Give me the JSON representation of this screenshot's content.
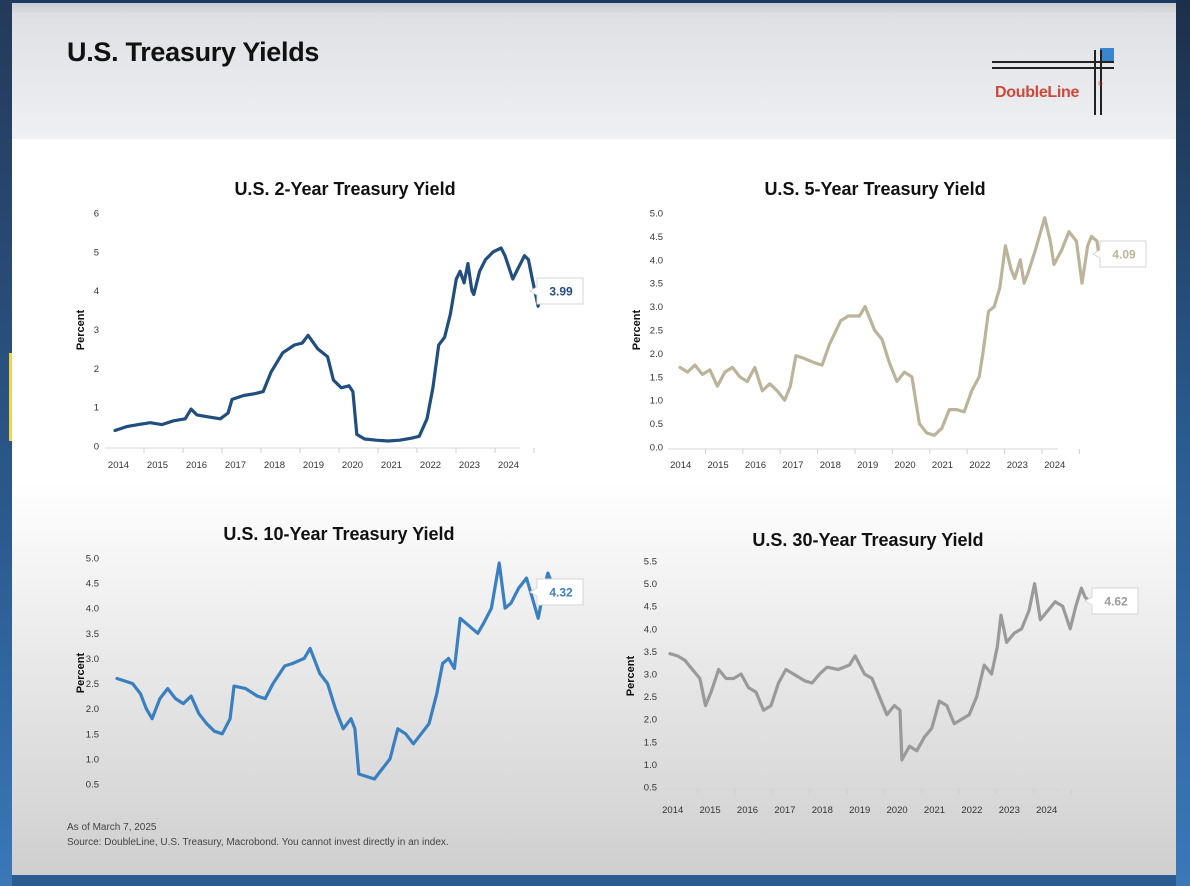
{
  "header": {
    "title": "U.S. Treasury Yields",
    "logo_text": "DoubleLine",
    "logo_reg": "®"
  },
  "footer": {
    "as_of": "As of March 7, 2025",
    "source": "Source: DoubleLine, U.S. Treasury, Macrobond. You cannot invest directly in an index."
  },
  "colors": {
    "two_year": "#1f4e7f",
    "five_year": "#bcb49a",
    "ten_year": "#3a7fc1",
    "thirty_year": "#9a9a9a",
    "logo_red": "#d0473a",
    "logo_blue": "#3a86cc"
  },
  "chart_data": [
    {
      "id": "two_year",
      "type": "line",
      "title": "U.S. 2-Year Treasury Yield",
      "xlabel": "",
      "ylabel": "Percent",
      "ylim": [
        0,
        6
      ],
      "yticks": [
        "0",
        "1",
        "2",
        "3",
        "4",
        "5",
        "6"
      ],
      "xticks": [
        "2014",
        "2015",
        "2016",
        "2017",
        "2018",
        "2019",
        "2020",
        "2021",
        "2022",
        "2023",
        "2024"
      ],
      "last_value_label": "3.99",
      "color": "#1f4e7f",
      "x": [
        2014.0,
        2014.3,
        2014.6,
        2014.9,
        2015.2,
        2015.5,
        2015.8,
        2015.95,
        2016.1,
        2016.4,
        2016.7,
        2016.9,
        2017.0,
        2017.3,
        2017.6,
        2017.8,
        2018.0,
        2018.3,
        2018.6,
        2018.8,
        2018.95,
        2019.2,
        2019.45,
        2019.6,
        2019.8,
        2020.0,
        2020.1,
        2020.2,
        2020.4,
        2020.7,
        2021.0,
        2021.3,
        2021.6,
        2021.8,
        2022.0,
        2022.15,
        2022.3,
        2022.45,
        2022.6,
        2022.75,
        2022.85,
        2022.95,
        2023.05,
        2023.15,
        2023.2,
        2023.35,
        2023.5,
        2023.7,
        2023.9,
        2024.0,
        2024.2,
        2024.35,
        2024.5,
        2024.6,
        2024.7,
        2024.85,
        2024.95,
        2025.1,
        2025.18
      ],
      "y": [
        0.4,
        0.5,
        0.55,
        0.6,
        0.55,
        0.65,
        0.7,
        0.95,
        0.8,
        0.75,
        0.7,
        0.85,
        1.2,
        1.3,
        1.35,
        1.4,
        1.9,
        2.4,
        2.6,
        2.65,
        2.85,
        2.5,
        2.3,
        1.7,
        1.5,
        1.55,
        1.4,
        0.3,
        0.18,
        0.15,
        0.13,
        0.15,
        0.2,
        0.25,
        0.7,
        1.5,
        2.6,
        2.8,
        3.4,
        4.3,
        4.5,
        4.2,
        4.7,
        4.0,
        3.9,
        4.5,
        4.8,
        5.0,
        5.1,
        4.9,
        4.3,
        4.6,
        4.9,
        4.8,
        4.3,
        3.6,
        4.2,
        4.3,
        3.99
      ]
    },
    {
      "id": "five_year",
      "type": "line",
      "title": "U.S. 5-Year Treasury Yield",
      "xlabel": "",
      "ylabel": "Percent",
      "ylim": [
        0,
        5
      ],
      "yticks": [
        "0.0",
        "0.5",
        "1.0",
        "1.5",
        "2.0",
        "2.5",
        "3.0",
        "3.5",
        "4.0",
        "4.5",
        "5.0"
      ],
      "xticks": [
        "2014",
        "2015",
        "2016",
        "2017",
        "2018",
        "2019",
        "2020",
        "2021",
        "2022",
        "2023",
        "2024"
      ],
      "last_value_label": "4.09",
      "color": "#bcb49a",
      "x": [
        2014.0,
        2014.2,
        2014.4,
        2014.6,
        2014.8,
        2015.0,
        2015.2,
        2015.4,
        2015.6,
        2015.8,
        2016.0,
        2016.2,
        2016.4,
        2016.6,
        2016.8,
        2016.95,
        2017.1,
        2017.3,
        2017.6,
        2017.8,
        2018.0,
        2018.3,
        2018.5,
        2018.8,
        2018.95,
        2019.2,
        2019.4,
        2019.6,
        2019.8,
        2020.0,
        2020.2,
        2020.4,
        2020.6,
        2020.8,
        2021.0,
        2021.2,
        2021.4,
        2021.6,
        2021.8,
        2022.0,
        2022.1,
        2022.25,
        2022.4,
        2022.55,
        2022.7,
        2022.85,
        2022.95,
        2023.1,
        2023.2,
        2023.3,
        2023.5,
        2023.75,
        2023.9,
        2024.0,
        2024.2,
        2024.4,
        2024.6,
        2024.75,
        2024.9,
        2025.0,
        2025.15,
        2025.2
      ],
      "y": [
        1.7,
        1.6,
        1.75,
        1.55,
        1.65,
        1.3,
        1.6,
        1.7,
        1.5,
        1.4,
        1.7,
        1.2,
        1.35,
        1.2,
        1.0,
        1.3,
        1.95,
        1.9,
        1.8,
        1.75,
        2.2,
        2.7,
        2.8,
        2.8,
        3.0,
        2.5,
        2.3,
        1.8,
        1.4,
        1.6,
        1.5,
        0.5,
        0.3,
        0.25,
        0.4,
        0.8,
        0.8,
        0.75,
        1.2,
        1.5,
        2.0,
        2.9,
        3.0,
        3.4,
        4.3,
        3.8,
        3.6,
        4.0,
        3.5,
        3.7,
        4.2,
        4.9,
        4.4,
        3.9,
        4.2,
        4.6,
        4.4,
        3.5,
        4.3,
        4.5,
        4.4,
        4.09
      ]
    },
    {
      "id": "ten_year",
      "type": "line",
      "title": "U.S. 10-Year Treasury Yield",
      "xlabel": "",
      "ylabel": "Percent",
      "ylim": [
        0.5,
        5
      ],
      "yticks": [
        "0.5",
        "1.0",
        "1.5",
        "2.0",
        "2.5",
        "3.0",
        "3.5",
        "4.0",
        "4.5",
        "5.0"
      ],
      "xticks": [],
      "last_value_label": "4.32",
      "color": "#3a7fc1",
      "x": [
        2014.0,
        2014.2,
        2014.4,
        2014.6,
        2014.75,
        2014.9,
        2015.1,
        2015.3,
        2015.5,
        2015.7,
        2015.9,
        2016.1,
        2016.3,
        2016.5,
        2016.7,
        2016.9,
        2017.0,
        2017.3,
        2017.6,
        2017.8,
        2018.0,
        2018.3,
        2018.5,
        2018.8,
        2018.95,
        2019.2,
        2019.4,
        2019.6,
        2019.8,
        2020.0,
        2020.1,
        2020.2,
        2020.4,
        2020.6,
        2020.8,
        2021.0,
        2021.2,
        2021.4,
        2021.6,
        2021.8,
        2022.0,
        2022.2,
        2022.35,
        2022.5,
        2022.65,
        2022.8,
        2022.95,
        2023.1,
        2023.25,
        2023.4,
        2023.6,
        2023.8,
        2023.95,
        2024.1,
        2024.3,
        2024.5,
        2024.65,
        2024.8,
        2024.95,
        2025.05,
        2025.15,
        2025.2
      ],
      "y": [
        2.6,
        2.55,
        2.5,
        2.3,
        2.0,
        1.8,
        2.2,
        2.4,
        2.2,
        2.1,
        2.25,
        1.9,
        1.7,
        1.55,
        1.5,
        1.8,
        2.45,
        2.4,
        2.25,
        2.2,
        2.5,
        2.85,
        2.9,
        3.0,
        3.2,
        2.7,
        2.5,
        2.0,
        1.6,
        1.8,
        1.6,
        0.7,
        0.65,
        0.6,
        0.8,
        1.0,
        1.6,
        1.5,
        1.3,
        1.5,
        1.7,
        2.3,
        2.9,
        3.0,
        2.8,
        3.8,
        3.7,
        3.6,
        3.5,
        3.7,
        4.0,
        4.9,
        4.0,
        4.1,
        4.4,
        4.6,
        4.2,
        3.8,
        4.4,
        4.7,
        4.5,
        4.32
      ]
    },
    {
      "id": "thirty_year",
      "type": "line",
      "title": "U.S. 30-Year Treasury Yield",
      "xlabel": "",
      "ylabel": "Percent",
      "ylim": [
        0.5,
        5.5
      ],
      "yticks": [
        "0.5",
        "1.0",
        "1.5",
        "2.0",
        "2.5",
        "3.0",
        "3.5",
        "4.0",
        "4.5",
        "5.0",
        "5.5"
      ],
      "xticks": [
        "2014",
        "2015",
        "2016",
        "2017",
        "2018",
        "2019",
        "2020",
        "2021",
        "2022",
        "2023",
        "2024"
      ],
      "last_value_label": "4.62",
      "color": "#9a9a9a",
      "x": [
        2014.0,
        2014.2,
        2014.4,
        2014.6,
        2014.8,
        2014.95,
        2015.1,
        2015.3,
        2015.5,
        2015.7,
        2015.9,
        2016.1,
        2016.3,
        2016.5,
        2016.7,
        2016.9,
        2017.1,
        2017.3,
        2017.6,
        2017.8,
        2018.0,
        2018.2,
        2018.5,
        2018.8,
        2018.95,
        2019.2,
        2019.4,
        2019.6,
        2019.8,
        2020.0,
        2020.15,
        2020.2,
        2020.4,
        2020.6,
        2020.8,
        2021.0,
        2021.2,
        2021.4,
        2021.6,
        2021.8,
        2022.0,
        2022.2,
        2022.4,
        2022.6,
        2022.75,
        2022.85,
        2023.0,
        2023.2,
        2023.4,
        2023.6,
        2023.75,
        2023.9,
        2024.1,
        2024.3,
        2024.5,
        2024.7,
        2024.85,
        2025.0,
        2025.1,
        2025.2
      ],
      "y": [
        3.45,
        3.4,
        3.3,
        3.1,
        2.9,
        2.3,
        2.6,
        3.1,
        2.9,
        2.9,
        3.0,
        2.7,
        2.6,
        2.2,
        2.3,
        2.8,
        3.1,
        3.0,
        2.85,
        2.8,
        3.0,
        3.15,
        3.1,
        3.2,
        3.4,
        3.0,
        2.9,
        2.5,
        2.1,
        2.3,
        2.2,
        1.1,
        1.4,
        1.3,
        1.6,
        1.8,
        2.4,
        2.3,
        1.9,
        2.0,
        2.1,
        2.5,
        3.2,
        3.0,
        3.6,
        4.3,
        3.7,
        3.9,
        4.0,
        4.4,
        5.0,
        4.2,
        4.4,
        4.6,
        4.5,
        4.0,
        4.5,
        4.9,
        4.7,
        4.62
      ]
    }
  ]
}
